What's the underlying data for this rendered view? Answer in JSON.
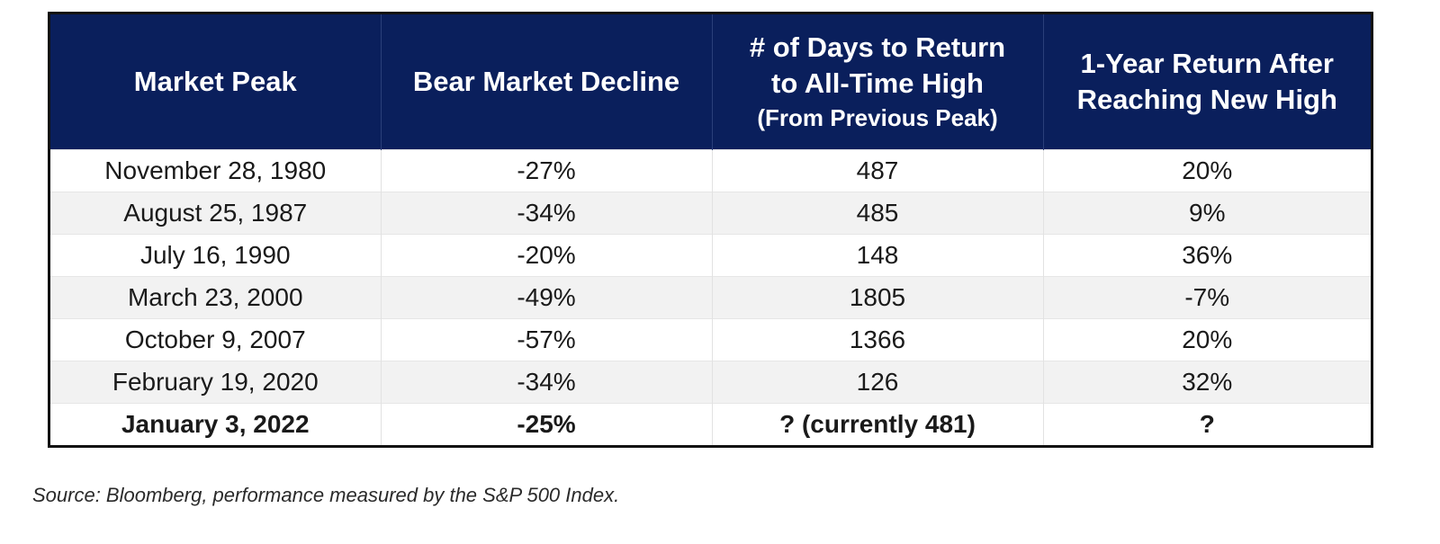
{
  "table": {
    "headers": [
      {
        "lines": [
          "Market Peak"
        ],
        "sub": ""
      },
      {
        "lines": [
          "Bear Market Decline"
        ],
        "sub": ""
      },
      {
        "lines": [
          "# of Days to Return",
          "to All-Time High"
        ],
        "sub": "(From Previous Peak)"
      },
      {
        "lines": [
          "1-Year Return After",
          "Reaching New High"
        ],
        "sub": ""
      }
    ],
    "rows": [
      [
        "November 28, 1980",
        "-27%",
        "487",
        "20%"
      ],
      [
        "August 25, 1987",
        "-34%",
        "485",
        "9%"
      ],
      [
        "July 16, 1990",
        "-20%",
        "148",
        "36%"
      ],
      [
        "March 23, 2000",
        "-49%",
        "1805",
        "-7%"
      ],
      [
        "October 9, 2007",
        "-57%",
        "1366",
        "20%"
      ],
      [
        "February 19, 2020",
        "-34%",
        "126",
        "32%"
      ],
      [
        "January 3, 2022",
        "-25%",
        "? (currently 481)",
        "?"
      ]
    ],
    "highlighted_row": 6
  },
  "source": "Source: Bloomberg, performance measured by the S&P 500 Index.",
  "colors": {
    "header_bg": "#0a1f5c",
    "header_text": "#ffffff",
    "row_alt_bg": "#f2f2f2",
    "border": "#111111"
  }
}
